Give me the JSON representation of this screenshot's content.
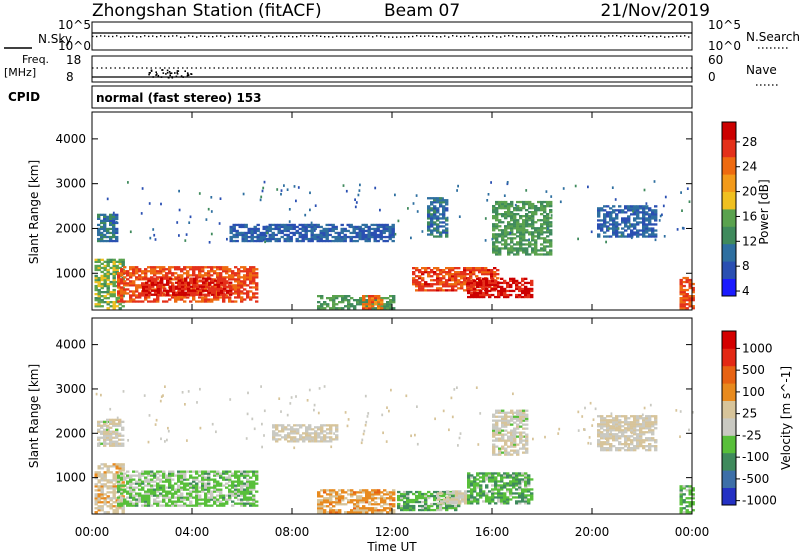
{
  "header": {
    "station": "Zhongshan Station",
    "mode": "(fitACF)",
    "beam": "Beam 07",
    "date": "21/Nov/2019"
  },
  "panels": {
    "nsky": {
      "label": "N.Sky",
      "ticks": [
        "10^5",
        "10^0"
      ]
    },
    "nsearch": {
      "label": "N.Search",
      "ticks": [
        "10^5",
        "10^0"
      ]
    },
    "freq": {
      "label": "Freq.",
      "unit": "[MHz]",
      "ticks": [
        "18",
        "8"
      ]
    },
    "nave": {
      "label": "Nave",
      "ticks": [
        "60",
        "0"
      ]
    },
    "cpid": {
      "label": "CPID",
      "text": "normal (fast stereo) 153"
    }
  },
  "colors": {
    "power": [
      "#1b1bff",
      "#2a4fb2",
      "#2e6fa0",
      "#3f8a5c",
      "#5aa24e",
      "#f0c020",
      "#f39a1a",
      "#ee6a10",
      "#e4301a",
      "#cc0000"
    ],
    "velocity": [
      "#2431c4",
      "#3d6fa8",
      "#3f8a5c",
      "#58bf3a",
      "#c9c9c2",
      "#d7c49a",
      "#e88a1e",
      "#e76212",
      "#e32814",
      "#d40000"
    ]
  },
  "chart_data": [
    {
      "type": "heatmap",
      "name": "power",
      "ylabel": "Slant Range [km]",
      "ylim": [
        180,
        4600
      ],
      "yticks": [
        1000,
        2000,
        3000,
        4000
      ],
      "xticks": [
        "00:00",
        "04:00",
        "08:00",
        "12:00",
        "16:00",
        "20:00",
        "00:00"
      ],
      "xlim_hours": [
        0,
        24
      ],
      "colorbar": {
        "label": "Power [dB]",
        "ticks": [
          "28",
          "24",
          "20",
          "16",
          "12",
          "8",
          "4"
        ],
        "range": [
          0,
          30
        ]
      },
      "features": [
        {
          "t": [
            0.1,
            1.2
          ],
          "r": [
            200,
            1300
          ],
          "value": 14
        },
        {
          "t": [
            1.0,
            6.6
          ],
          "r": [
            350,
            1150
          ],
          "value": 24
        },
        {
          "t": [
            2.0,
            5.5
          ],
          "r": [
            500,
            900
          ],
          "value": 27
        },
        {
          "t": [
            0.2,
            1.0
          ],
          "r": [
            1700,
            2300
          ],
          "value": 8
        },
        {
          "t": [
            5.5,
            12.0
          ],
          "r": [
            1700,
            2100
          ],
          "value": 6
        },
        {
          "t": [
            9.0,
            12.0
          ],
          "r": [
            200,
            500
          ],
          "value": 12
        },
        {
          "t": [
            10.8,
            11.6
          ],
          "r": [
            200,
            500
          ],
          "value": 22
        },
        {
          "t": [
            12.8,
            16.2
          ],
          "r": [
            600,
            1100
          ],
          "value": 25
        },
        {
          "t": [
            15.0,
            17.6
          ],
          "r": [
            450,
            900
          ],
          "value": 28
        },
        {
          "t": [
            13.4,
            14.2
          ],
          "r": [
            1800,
            2700
          ],
          "value": 8
        },
        {
          "t": [
            16.0,
            18.4
          ],
          "r": [
            1400,
            2600
          ],
          "value": 12
        },
        {
          "t": [
            20.2,
            22.5
          ],
          "r": [
            1800,
            2500
          ],
          "value": 6
        },
        {
          "t": [
            23.5,
            24.0
          ],
          "r": [
            200,
            900
          ],
          "value": 24
        }
      ]
    },
    {
      "type": "heatmap",
      "name": "velocity",
      "ylabel": "Slant Range [km]",
      "ylim": [
        180,
        4600
      ],
      "yticks": [
        1000,
        2000,
        3000,
        4000
      ],
      "xticks": [
        "00:00",
        "04:00",
        "08:00",
        "12:00",
        "16:00",
        "20:00",
        "00:00"
      ],
      "xlabel": "Time UT",
      "xlim_hours": [
        0,
        24
      ],
      "colorbar": {
        "label": "Velocity [m s^-1]",
        "ticks": [
          "1000",
          "500",
          "100",
          "25",
          "-25",
          "-100",
          "-500",
          "-1000"
        ],
        "range": [
          -1200,
          1200
        ]
      },
      "features": [
        {
          "t": [
            0.1,
            1.2
          ],
          "r": [
            200,
            1300
          ],
          "value": 100
        },
        {
          "t": [
            1.0,
            6.6
          ],
          "r": [
            350,
            1150
          ],
          "value": -300
        },
        {
          "t": [
            0.2,
            1.2
          ],
          "r": [
            1700,
            2300
          ],
          "value": -60
        },
        {
          "t": [
            7.2,
            9.8
          ],
          "r": [
            1800,
            2200
          ],
          "value": 0
        },
        {
          "t": [
            9.0,
            12.0
          ],
          "r": [
            200,
            700
          ],
          "value": 300
        },
        {
          "t": [
            12.2,
            14.6
          ],
          "r": [
            250,
            700
          ],
          "value": -400
        },
        {
          "t": [
            13.8,
            15.0
          ],
          "r": [
            400,
            700
          ],
          "value": 0
        },
        {
          "t": [
            15.0,
            17.6
          ],
          "r": [
            400,
            1100
          ],
          "value": -400
        },
        {
          "t": [
            16.0,
            17.4
          ],
          "r": [
            1500,
            2500
          ],
          "value": -60
        },
        {
          "t": [
            20.2,
            22.5
          ],
          "r": [
            1600,
            2400
          ],
          "value": 0
        },
        {
          "t": [
            23.5,
            24.0
          ],
          "r": [
            200,
            800
          ],
          "value": -400
        }
      ]
    }
  ]
}
